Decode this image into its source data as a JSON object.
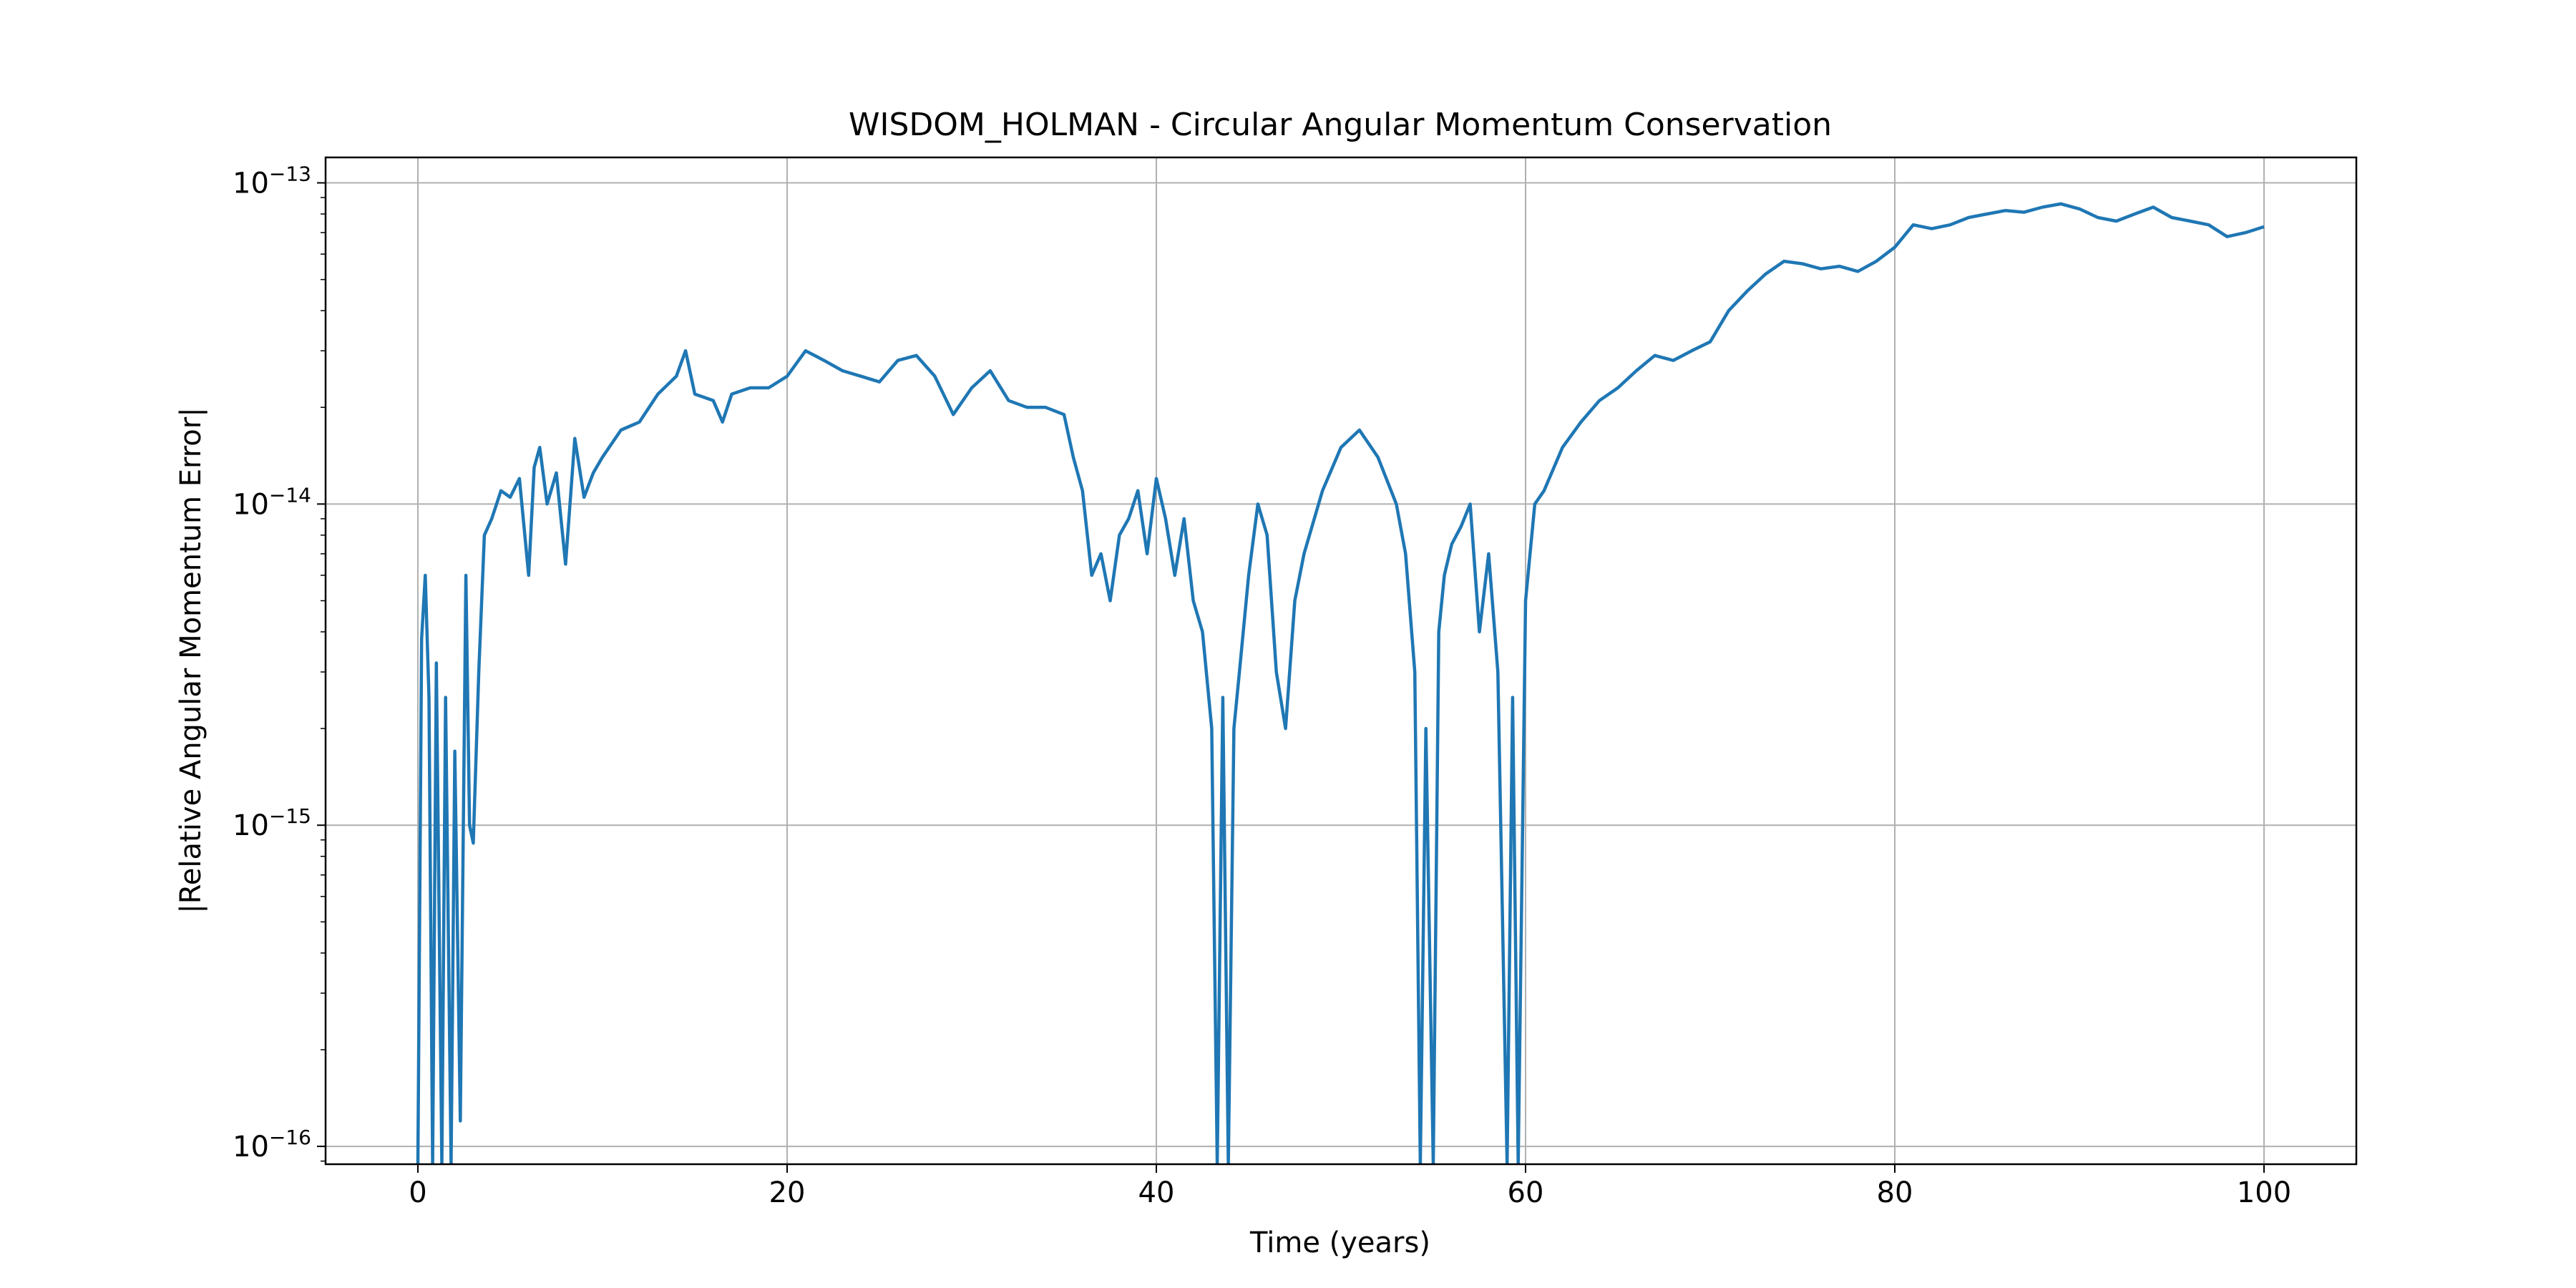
{
  "chart_data": {
    "type": "line",
    "title": "WISDOM_HOLMAN - Circular Angular Momentum Conservation",
    "xlabel": "Time (years)",
    "ylabel": "|Relative Angular Momentum Error|",
    "yscale": "log",
    "xlim": [
      -5,
      105
    ],
    "ylim": [
      8.8e-17,
      1.2e-13
    ],
    "grid": true,
    "xticks": [
      {
        "value": 0,
        "label": "0"
      },
      {
        "value": 20,
        "label": "20"
      },
      {
        "value": 40,
        "label": "40"
      },
      {
        "value": 60,
        "label": "60"
      },
      {
        "value": 80,
        "label": "80"
      },
      {
        "value": 100,
        "label": "100"
      }
    ],
    "yticks": [
      {
        "value": 1e-16,
        "base": "10",
        "exp": "−16"
      },
      {
        "value": 1e-15,
        "base": "10",
        "exp": "−15"
      },
      {
        "value": 1e-14,
        "base": "10",
        "exp": "−14"
      },
      {
        "value": 1e-13,
        "base": "10",
        "exp": "−13"
      }
    ],
    "series": [
      {
        "color": "#1f77b4",
        "x": [
          0,
          0.2,
          0.4,
          0.6,
          0.8,
          1.0,
          1.3,
          1.5,
          1.8,
          2.0,
          2.3,
          2.6,
          2.8,
          3.0,
          3.3,
          3.6,
          4.0,
          4.5,
          5.0,
          5.5,
          6.0,
          6.3,
          6.6,
          7.0,
          7.5,
          8.0,
          8.5,
          9.0,
          9.5,
          10.0,
          11.0,
          12.0,
          13.0,
          14.0,
          14.5,
          15.0,
          16.0,
          16.5,
          17.0,
          18.0,
          19.0,
          20.0,
          21.0,
          22.0,
          23.0,
          24.0,
          25.0,
          26.0,
          27.0,
          28.0,
          29.0,
          30.0,
          31.0,
          32.0,
          33.0,
          34.0,
          35.0,
          35.5,
          36.0,
          36.5,
          37.0,
          37.5,
          38.0,
          38.5,
          39.0,
          39.5,
          40.0,
          40.5,
          41.0,
          41.5,
          42.0,
          42.5,
          43.0,
          43.3,
          43.6,
          43.9,
          44.2,
          44.5,
          45.0,
          45.5,
          46.0,
          46.5,
          47.0,
          47.5,
          48.0,
          49.0,
          50.0,
          51.0,
          52.0,
          53.0,
          53.5,
          54.0,
          54.3,
          54.6,
          55.0,
          55.3,
          55.6,
          56.0,
          56.5,
          57.0,
          57.5,
          58.0,
          58.5,
          59.0,
          59.3,
          59.6,
          60.0,
          60.5,
          61.0,
          62.0,
          63.0,
          64.0,
          65.0,
          66.0,
          67.0,
          68.0,
          69.0,
          70.0,
          71.0,
          72.0,
          73.0,
          74.0,
          75.0,
          76.0,
          77.0,
          78.0,
          79.0,
          80.0,
          81.0,
          82.0,
          83.0,
          84.0,
          85.0,
          86.0,
          87.0,
          88.0,
          89.0,
          90.0,
          91.0,
          92.0,
          93.0,
          94.0,
          95.0,
          96.0,
          97.0,
          98.0,
          99.0,
          100.0
        ],
        "y": [
          8.8e-17,
          3.8e-15,
          6e-15,
          2.5e-15,
          8.8e-17,
          3.2e-15,
          8.8e-17,
          2.5e-15,
          8.8e-17,
          1.7e-15,
          1.2e-16,
          6e-15,
          1e-15,
          8.8e-16,
          3e-15,
          8e-15,
          9e-15,
          1.1e-14,
          1.05e-14,
          1.2e-14,
          6e-15,
          1.3e-14,
          1.5e-14,
          1e-14,
          1.25e-14,
          6.5e-15,
          1.6e-14,
          1.05e-14,
          1.25e-14,
          1.4e-14,
          1.7e-14,
          1.8e-14,
          2.2e-14,
          2.5e-14,
          3e-14,
          2.2e-14,
          2.1e-14,
          1.8e-14,
          2.2e-14,
          2.3e-14,
          2.3e-14,
          2.5e-14,
          3e-14,
          2.8e-14,
          2.6e-14,
          2.5e-14,
          2.4e-14,
          2.8e-14,
          2.9e-14,
          2.5e-14,
          1.9e-14,
          2.3e-14,
          2.6e-14,
          2.1e-14,
          2e-14,
          2e-14,
          1.9e-14,
          1.4e-14,
          1.1e-14,
          6e-15,
          7e-15,
          5e-15,
          8e-15,
          9e-15,
          1.1e-14,
          7e-15,
          1.2e-14,
          9e-15,
          6e-15,
          9e-15,
          5e-15,
          4e-15,
          2e-15,
          8.8e-17,
          2.5e-15,
          8.8e-17,
          2e-15,
          3e-15,
          6e-15,
          1e-14,
          8e-15,
          3e-15,
          2e-15,
          5e-15,
          7e-15,
          1.1e-14,
          1.5e-14,
          1.7e-14,
          1.4e-14,
          1e-14,
          7e-15,
          3e-15,
          8.8e-17,
          2e-15,
          8.8e-17,
          4e-15,
          6e-15,
          7.5e-15,
          8.5e-15,
          1e-14,
          4e-15,
          7e-15,
          3e-15,
          8.8e-17,
          2.5e-15,
          8.8e-17,
          5e-15,
          1e-14,
          1.1e-14,
          1.5e-14,
          1.8e-14,
          2.1e-14,
          2.3e-14,
          2.6e-14,
          2.9e-14,
          2.8e-14,
          3e-14,
          3.2e-14,
          4e-14,
          4.6e-14,
          5.2e-14,
          5.7e-14,
          5.6e-14,
          5.4e-14,
          5.5e-14,
          5.3e-14,
          5.7e-14,
          6.3e-14,
          7.4e-14,
          7.2e-14,
          7.4e-14,
          7.8e-14,
          8e-14,
          8.2e-14,
          8.1e-14,
          8.4e-14,
          8.6e-14,
          8.3e-14,
          7.8e-14,
          7.6e-14,
          8e-14,
          8.4e-14,
          7.8e-14,
          7.6e-14,
          7.4e-14,
          6.8e-14,
          7e-14,
          7.3e-14
        ]
      }
    ]
  }
}
